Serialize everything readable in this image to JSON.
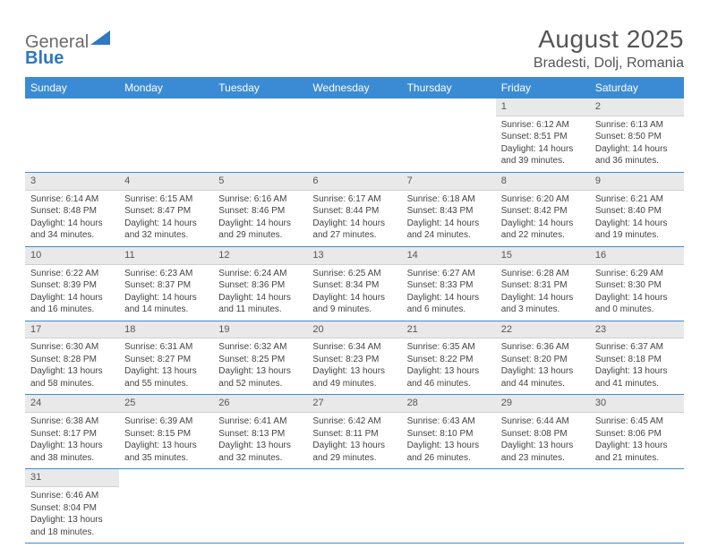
{
  "logo": {
    "text1": "General",
    "text2": "Blue",
    "triangle_color": "#2f78c2"
  },
  "title": "August 2025",
  "location": "Bradesti, Dolj, Romania",
  "header_bg": "#3b8bd4",
  "daynum_bg": "#e9e9e9",
  "weekdays": [
    "Sunday",
    "Monday",
    "Tuesday",
    "Wednesday",
    "Thursday",
    "Friday",
    "Saturday"
  ],
  "weeks": [
    [
      null,
      null,
      null,
      null,
      null,
      {
        "n": "1",
        "sr": "6:12 AM",
        "ss": "8:51 PM",
        "dl": "14 hours and 39 minutes."
      },
      {
        "n": "2",
        "sr": "6:13 AM",
        "ss": "8:50 PM",
        "dl": "14 hours and 36 minutes."
      }
    ],
    [
      {
        "n": "3",
        "sr": "6:14 AM",
        "ss": "8:48 PM",
        "dl": "14 hours and 34 minutes."
      },
      {
        "n": "4",
        "sr": "6:15 AM",
        "ss": "8:47 PM",
        "dl": "14 hours and 32 minutes."
      },
      {
        "n": "5",
        "sr": "6:16 AM",
        "ss": "8:46 PM",
        "dl": "14 hours and 29 minutes."
      },
      {
        "n": "6",
        "sr": "6:17 AM",
        "ss": "8:44 PM",
        "dl": "14 hours and 27 minutes."
      },
      {
        "n": "7",
        "sr": "6:18 AM",
        "ss": "8:43 PM",
        "dl": "14 hours and 24 minutes."
      },
      {
        "n": "8",
        "sr": "6:20 AM",
        "ss": "8:42 PM",
        "dl": "14 hours and 22 minutes."
      },
      {
        "n": "9",
        "sr": "6:21 AM",
        "ss": "8:40 PM",
        "dl": "14 hours and 19 minutes."
      }
    ],
    [
      {
        "n": "10",
        "sr": "6:22 AM",
        "ss": "8:39 PM",
        "dl": "14 hours and 16 minutes."
      },
      {
        "n": "11",
        "sr": "6:23 AM",
        "ss": "8:37 PM",
        "dl": "14 hours and 14 minutes."
      },
      {
        "n": "12",
        "sr": "6:24 AM",
        "ss": "8:36 PM",
        "dl": "14 hours and 11 minutes."
      },
      {
        "n": "13",
        "sr": "6:25 AM",
        "ss": "8:34 PM",
        "dl": "14 hours and 9 minutes."
      },
      {
        "n": "14",
        "sr": "6:27 AM",
        "ss": "8:33 PM",
        "dl": "14 hours and 6 minutes."
      },
      {
        "n": "15",
        "sr": "6:28 AM",
        "ss": "8:31 PM",
        "dl": "14 hours and 3 minutes."
      },
      {
        "n": "16",
        "sr": "6:29 AM",
        "ss": "8:30 PM",
        "dl": "14 hours and 0 minutes."
      }
    ],
    [
      {
        "n": "17",
        "sr": "6:30 AM",
        "ss": "8:28 PM",
        "dl": "13 hours and 58 minutes."
      },
      {
        "n": "18",
        "sr": "6:31 AM",
        "ss": "8:27 PM",
        "dl": "13 hours and 55 minutes."
      },
      {
        "n": "19",
        "sr": "6:32 AM",
        "ss": "8:25 PM",
        "dl": "13 hours and 52 minutes."
      },
      {
        "n": "20",
        "sr": "6:34 AM",
        "ss": "8:23 PM",
        "dl": "13 hours and 49 minutes."
      },
      {
        "n": "21",
        "sr": "6:35 AM",
        "ss": "8:22 PM",
        "dl": "13 hours and 46 minutes."
      },
      {
        "n": "22",
        "sr": "6:36 AM",
        "ss": "8:20 PM",
        "dl": "13 hours and 44 minutes."
      },
      {
        "n": "23",
        "sr": "6:37 AM",
        "ss": "8:18 PM",
        "dl": "13 hours and 41 minutes."
      }
    ],
    [
      {
        "n": "24",
        "sr": "6:38 AM",
        "ss": "8:17 PM",
        "dl": "13 hours and 38 minutes."
      },
      {
        "n": "25",
        "sr": "6:39 AM",
        "ss": "8:15 PM",
        "dl": "13 hours and 35 minutes."
      },
      {
        "n": "26",
        "sr": "6:41 AM",
        "ss": "8:13 PM",
        "dl": "13 hours and 32 minutes."
      },
      {
        "n": "27",
        "sr": "6:42 AM",
        "ss": "8:11 PM",
        "dl": "13 hours and 29 minutes."
      },
      {
        "n": "28",
        "sr": "6:43 AM",
        "ss": "8:10 PM",
        "dl": "13 hours and 26 minutes."
      },
      {
        "n": "29",
        "sr": "6:44 AM",
        "ss": "8:08 PM",
        "dl": "13 hours and 23 minutes."
      },
      {
        "n": "30",
        "sr": "6:45 AM",
        "ss": "8:06 PM",
        "dl": "13 hours and 21 minutes."
      }
    ],
    [
      {
        "n": "31",
        "sr": "6:46 AM",
        "ss": "8:04 PM",
        "dl": "13 hours and 18 minutes."
      },
      null,
      null,
      null,
      null,
      null,
      null
    ]
  ],
  "labels": {
    "sunrise": "Sunrise: ",
    "sunset": "Sunset: ",
    "daylight": "Daylight: "
  }
}
